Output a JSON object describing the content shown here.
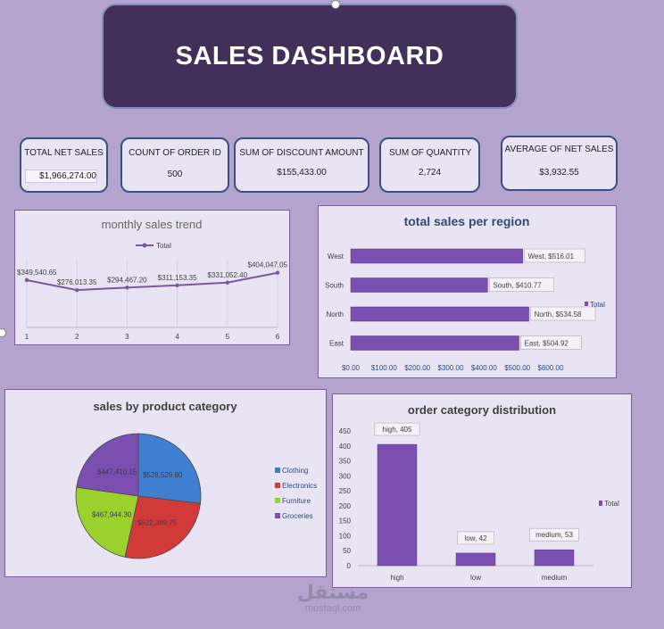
{
  "dashboard": {
    "title": "SALES DASHBOARD"
  },
  "kpis": [
    {
      "label": "TOTAL NET SALES",
      "value": "$1,966,274.00"
    },
    {
      "label": "COUNT OF ORDER ID",
      "value": "500"
    },
    {
      "label": "SUM OF DISCOUNT AMOUNT",
      "value": "$155,433.00"
    },
    {
      "label": "SUM OF QUANTITY",
      "value": "2,724"
    },
    {
      "label": "AVERAGE OF NET SALES",
      "value": "$3,932.55"
    }
  ],
  "watermark": {
    "arabic": "مستقل",
    "text": "mostaql.com"
  },
  "chart_data": [
    {
      "type": "line",
      "title": "monthly sales trend",
      "legend": "top-center",
      "x": [
        1,
        2,
        3,
        4,
        5,
        6
      ],
      "series": [
        {
          "name": "Total",
          "values": [
            349540.65,
            276013.35,
            294467.2,
            311153.35,
            331052.4,
            404047.05
          ],
          "labels": [
            "$349,540.65",
            "$276,013.35",
            "$294,467.20",
            "$311,153.35",
            "$331,052.40",
            "$404,047.05"
          ]
        }
      ],
      "ylim": [
        0,
        600000
      ],
      "grid": "vertical",
      "color": "#7a5a9e"
    },
    {
      "type": "bar",
      "orientation": "horizontal",
      "title": "total sales per region",
      "legend": "right",
      "categories": [
        "West",
        "South",
        "North",
        "East"
      ],
      "series": [
        {
          "name": "Total",
          "values": [
            516.01,
            410.77,
            534.58,
            504.92
          ],
          "labels": [
            "West, $516.01",
            "South, $410.77",
            "North, $534.58",
            "East, $504.92"
          ]
        }
      ],
      "xlim": [
        0,
        600
      ],
      "xticks": [
        "$0.00",
        "$100.00",
        "$200.00",
        "$300.00",
        "$400.00",
        "$500.00",
        "$600.00"
      ],
      "color": "#7a4fb0"
    },
    {
      "type": "pie",
      "title": "sales by product category",
      "legend": "right",
      "categories": [
        "Clothing",
        "Electronics",
        "Furniture",
        "Groceries"
      ],
      "values": [
        528529.8,
        522389.75,
        467944.3,
        447410.15
      ],
      "labels": [
        "$528,529.80",
        "$522,389.75",
        "$467,944.30",
        "$447,410.15"
      ],
      "colors": [
        "#3f7fd0",
        "#d23a3a",
        "#9bd12f",
        "#7a4fb0"
      ]
    },
    {
      "type": "bar",
      "title": "order category distribution",
      "legend": "right",
      "categories": [
        "high",
        "low",
        "medium"
      ],
      "series": [
        {
          "name": "Total",
          "values": [
            405,
            42,
            53
          ],
          "labels": [
            "high, 405",
            "low, 42",
            "medium, 53"
          ]
        }
      ],
      "ylim": [
        0,
        450
      ],
      "yticks": [
        0,
        50,
        100,
        150,
        200,
        250,
        300,
        350,
        400,
        450
      ],
      "color": "#7a4fb0"
    }
  ]
}
